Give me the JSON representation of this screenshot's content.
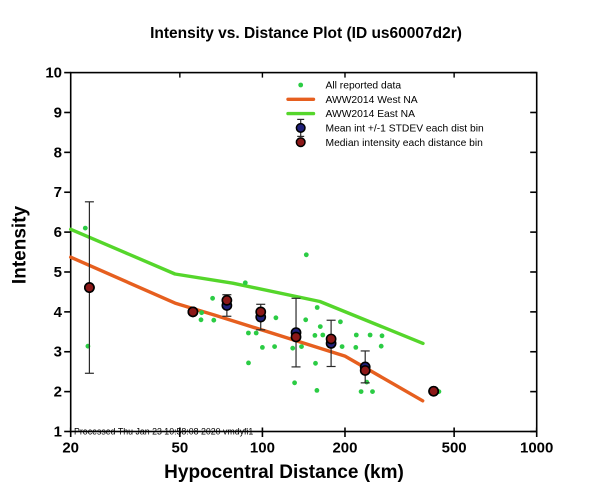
{
  "title": "Intensity vs. Distance Plot (ID us60007d2r)",
  "footer": "Processed Thu Jan 23 10:58:08 2020 vmdyfi1",
  "chart_data": {
    "type": "scatter",
    "title": "Intensity vs. Distance Plot (ID us60007d2r)",
    "xlabel": "Hypocentral Distance (km)",
    "ylabel": "Intensity",
    "x_scale": "log",
    "xlim": [
      20,
      1000
    ],
    "ylim": [
      1,
      10
    ],
    "x_ticks": [
      20,
      50,
      100,
      200,
      500,
      1000
    ],
    "y_ticks": [
      1,
      2,
      3,
      4,
      5,
      6,
      7,
      8,
      9,
      10
    ],
    "grid": false,
    "legend_position": "top-center-inside",
    "colors": {
      "scatter_green": "#2bcc44",
      "line_east_green": "#55d62b",
      "line_west_orange": "#e65f1f",
      "mean_navy": "#20207a",
      "median_maroon": "#8c1818",
      "error_bar": "#2a2a2a",
      "frame": "#000000"
    },
    "legend": [
      {
        "label": "All reported data",
        "type": "dot",
        "color": "#2bcc44"
      },
      {
        "label": "AWW2014 West NA",
        "type": "line",
        "color": "#e65f1f"
      },
      {
        "label": "AWW2014 East NA",
        "type": "line",
        "color": "#55d62b"
      },
      {
        "label": "Mean int +/-1 STDEV each dist bin",
        "type": "mean-marker",
        "color": "#20207a"
      },
      {
        "label": "Median intensity each distance bin",
        "type": "median-marker",
        "color": "#8c1818"
      }
    ],
    "series": [
      {
        "name": "All reported data",
        "type": "scatter",
        "color": "#2bcc44",
        "points": [
          [
            22.6,
            6.1
          ],
          [
            23.1,
            3.14
          ],
          [
            59.7,
            3.8
          ],
          [
            60.0,
            3.98
          ],
          [
            65.8,
            4.34
          ],
          [
            66.5,
            3.79
          ],
          [
            86.6,
            4.73
          ],
          [
            88.9,
            3.47
          ],
          [
            94.9,
            3.47
          ],
          [
            100.0,
            3.11
          ],
          [
            89.0,
            2.72
          ],
          [
            110.8,
            3.13
          ],
          [
            112.0,
            3.85
          ],
          [
            129.0,
            3.09
          ],
          [
            131.0,
            2.22
          ],
          [
            138.8,
            3.13
          ],
          [
            143.8,
            3.8
          ],
          [
            144.5,
            5.43
          ],
          [
            155.4,
            3.41
          ],
          [
            156.2,
            2.71
          ],
          [
            158.0,
            2.03
          ],
          [
            158.4,
            4.11
          ],
          [
            162.6,
            3.63
          ],
          [
            166.0,
            3.42
          ],
          [
            192.5,
            3.75
          ],
          [
            195.2,
            3.13
          ],
          [
            219.0,
            3.11
          ],
          [
            220.0,
            3.42
          ],
          [
            229.0,
            2.0
          ],
          [
            240.0,
            2.24
          ],
          [
            247.0,
            3.42
          ],
          [
            252.0,
            2.0
          ],
          [
            271.0,
            3.14
          ],
          [
            273.0,
            3.4
          ],
          [
            440.0,
            2.0
          ]
        ]
      },
      {
        "name": "AWW2014 West NA",
        "type": "line",
        "color": "#e65f1f",
        "points": [
          [
            20,
            5.37
          ],
          [
            48,
            4.22
          ],
          [
            67,
            3.92
          ],
          [
            200,
            2.89
          ],
          [
            384,
            1.77
          ]
        ]
      },
      {
        "name": "AWW2014 East NA",
        "type": "line",
        "color": "#55d62b",
        "points": [
          [
            20,
            6.07
          ],
          [
            48,
            4.95
          ],
          [
            78,
            4.72
          ],
          [
            162,
            4.26
          ],
          [
            385,
            3.21
          ]
        ]
      },
      {
        "name": "Mean int +/-1 STDEV each dist bin",
        "type": "binned-mean",
        "color": "#20207a",
        "bins": [
          {
            "distance_km": 23.4,
            "mean": 4.61,
            "stdev": 2.15
          },
          {
            "distance_km": 55.8,
            "mean": 4.0,
            "stdev": 0.05
          },
          {
            "distance_km": 74.2,
            "mean": 4.16,
            "stdev": 0.27
          },
          {
            "distance_km": 98.6,
            "mean": 3.87,
            "stdev": 0.32
          },
          {
            "distance_km": 132.6,
            "mean": 3.48,
            "stdev": 0.86
          },
          {
            "distance_km": 178.0,
            "mean": 3.21,
            "stdev": 0.58
          },
          {
            "distance_km": 237.0,
            "mean": 2.62,
            "stdev": 0.4
          },
          {
            "distance_km": 421.0,
            "mean": 2.01,
            "stdev": 0.02
          }
        ]
      },
      {
        "name": "Median intensity each distance bin",
        "type": "binned-median",
        "color": "#8c1818",
        "points": [
          [
            23.4,
            4.61
          ],
          [
            55.8,
            4.0
          ],
          [
            74.2,
            4.29
          ],
          [
            98.6,
            4.0
          ],
          [
            132.6,
            3.37
          ],
          [
            178.0,
            3.32
          ],
          [
            237.0,
            2.53
          ],
          [
            421.0,
            2.01
          ]
        ]
      }
    ]
  }
}
